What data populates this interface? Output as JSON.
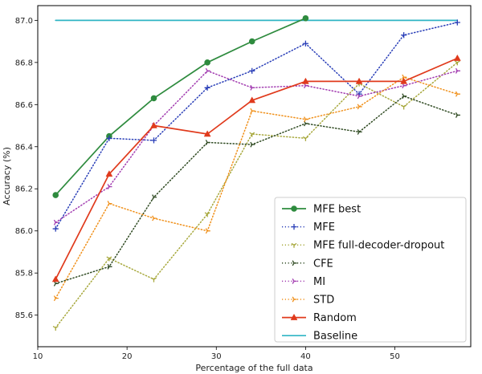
{
  "chart_data": {
    "type": "line",
    "xlabel": "Percentage of the full data",
    "ylabel": "Accuracy (%)",
    "xlim": [
      10,
      58.5
    ],
    "ylim": [
      85.45,
      87.07
    ],
    "xticks": [
      10,
      20,
      30,
      40,
      50
    ],
    "yticks": [
      85.6,
      85.8,
      86.0,
      86.2,
      86.4,
      86.6,
      86.8,
      87.0
    ],
    "grid": false,
    "legend_position": "lower-right",
    "series": [
      {
        "name": "MFE best",
        "color": "#2e8b3e",
        "marker": "circle",
        "dash": "solid",
        "x": [
          12,
          18,
          23,
          29,
          34,
          40
        ],
        "y": [
          86.17,
          86.45,
          86.63,
          86.8,
          86.9,
          87.01
        ]
      },
      {
        "name": "MFE",
        "color": "#2a3fb8",
        "marker": "plus",
        "dash": "dotted",
        "x": [
          12,
          18,
          23,
          29,
          34,
          40,
          46,
          51,
          57
        ],
        "y": [
          86.01,
          86.44,
          86.43,
          86.68,
          86.76,
          86.89,
          86.65,
          86.93,
          86.99
        ]
      },
      {
        "name": "MFE full-decoder-dropout",
        "color": "#a7a83c",
        "marker": "tri-down",
        "dash": "dotted",
        "x": [
          12,
          18,
          23,
          29,
          34,
          40,
          46,
          51,
          57
        ],
        "y": [
          85.54,
          85.87,
          85.77,
          86.08,
          86.46,
          86.44,
          86.7,
          86.59,
          86.8
        ]
      },
      {
        "name": "CFE",
        "color": "#2f4a22",
        "marker": "tri-right",
        "dash": "dotted",
        "x": [
          12,
          18,
          23,
          29,
          34,
          40,
          46,
          51,
          57
        ],
        "y": [
          85.75,
          85.83,
          86.16,
          86.42,
          86.41,
          86.51,
          86.47,
          86.64,
          86.55
        ]
      },
      {
        "name": "MI",
        "color": "#a23cb0",
        "marker": "tri-right",
        "dash": "dotted",
        "x": [
          12,
          18,
          23,
          29,
          34,
          40,
          46,
          51,
          57
        ],
        "y": [
          86.04,
          86.21,
          86.5,
          86.76,
          86.68,
          86.69,
          86.64,
          86.69,
          86.76
        ]
      },
      {
        "name": "STD",
        "color": "#f0911c",
        "marker": "tri-right",
        "dash": "dotted",
        "x": [
          12,
          18,
          23,
          29,
          34,
          40,
          46,
          51,
          57
        ],
        "y": [
          85.68,
          86.13,
          86.06,
          86.0,
          86.57,
          86.53,
          86.59,
          86.73,
          86.65
        ]
      },
      {
        "name": "Random",
        "color": "#e03a1c",
        "marker": "triangle",
        "dash": "solid",
        "x": [
          12,
          18,
          23,
          29,
          34,
          40,
          46,
          51,
          57
        ],
        "y": [
          85.77,
          86.27,
          86.5,
          86.46,
          86.62,
          86.71,
          86.71,
          86.71,
          86.82
        ]
      },
      {
        "name": "Baseline",
        "color": "#2fb5c4",
        "marker": "none",
        "dash": "solid",
        "x": [
          12,
          57
        ],
        "y": [
          87.0,
          87.0
        ]
      }
    ]
  }
}
